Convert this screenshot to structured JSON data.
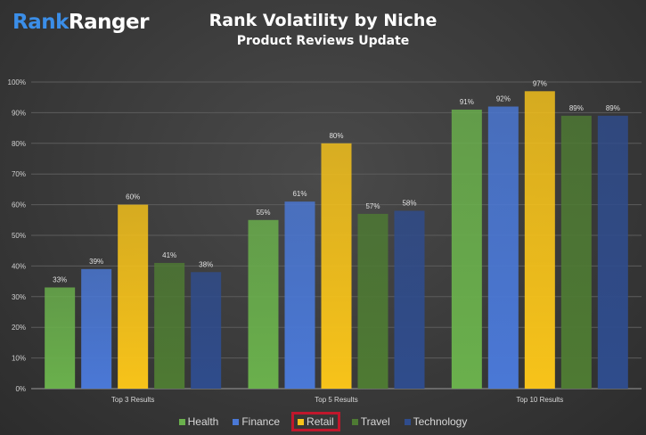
{
  "brand": {
    "part1": "Rank",
    "part2": "Ranger"
  },
  "chart_data": {
    "type": "bar",
    "title": "Rank Volatility by Niche",
    "subtitle": "Product Reviews Update",
    "categories": [
      "Top 3 Results",
      "Top 5 Results",
      "Top 10 Results"
    ],
    "series": [
      {
        "name": "Health",
        "values": [
          33,
          55,
          91
        ],
        "color": "#6ab04c"
      },
      {
        "name": "Finance",
        "values": [
          39,
          61,
          92
        ],
        "color": "#4a78d6"
      },
      {
        "name": "Retail",
        "values": [
          60,
          80,
          97
        ],
        "color": "#f7c31a"
      },
      {
        "name": "Travel",
        "values": [
          41,
          57,
          89
        ],
        "color": "#4e7a33"
      },
      {
        "name": "Technology",
        "values": [
          38,
          58,
          89
        ],
        "color": "#2f4c8c"
      }
    ],
    "ylim": [
      0,
      100
    ],
    "yticks": [
      0,
      10,
      20,
      30,
      40,
      50,
      60,
      70,
      80,
      90,
      100
    ],
    "tick_suffix": "%",
    "label_suffix": "%",
    "grid": true,
    "legend_position": "bottom",
    "highlighted_series": "Retail"
  }
}
